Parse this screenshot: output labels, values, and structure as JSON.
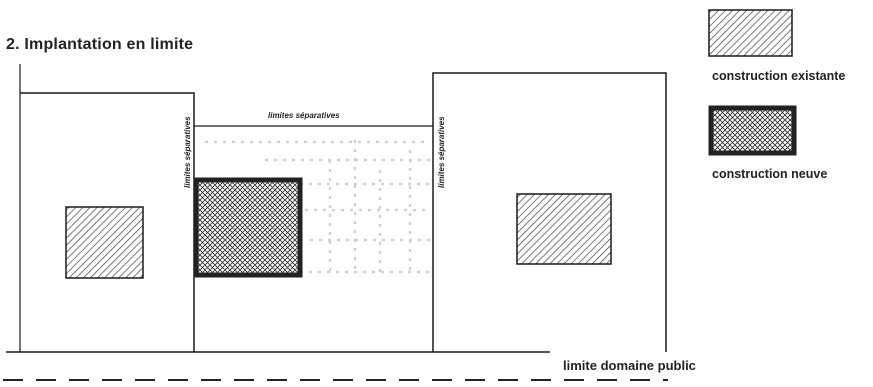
{
  "title": "2. Implantation en limite",
  "labels": {
    "top_boundary": "limites séparatives",
    "left_boundary": "limites séparatives",
    "right_boundary": "limites séparatives",
    "public_domain": "limite domaine public"
  },
  "legend": [
    {
      "label": "construction existante",
      "pattern": "hatch-diagonal"
    },
    {
      "label": "construction neuve",
      "pattern": "hatch-cross"
    }
  ],
  "colors": {
    "line": "#1a1a1a",
    "hatch": "#333333",
    "new_border": "#222222"
  }
}
